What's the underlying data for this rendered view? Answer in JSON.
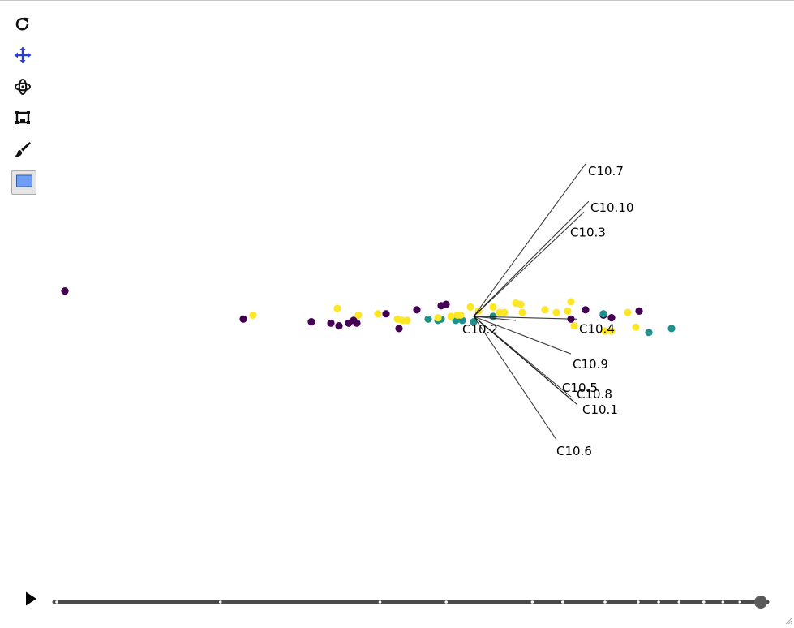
{
  "toolbar": {
    "tools": [
      {
        "name": "reset",
        "icon": "refresh-icon"
      },
      {
        "name": "pan",
        "icon": "move-arrows-icon",
        "color": "#2a3bd6"
      },
      {
        "name": "rotate",
        "icon": "orbit-icon"
      },
      {
        "name": "zoom-box",
        "icon": "zoom-box-icon"
      },
      {
        "name": "brush",
        "icon": "brush-icon"
      },
      {
        "name": "select",
        "icon": "selection-rectangle-icon",
        "color": "#6f9ff5"
      }
    ]
  },
  "chart_data": {
    "type": "scatter",
    "title": "",
    "xlabel": "",
    "ylabel": "",
    "grid": false,
    "legend": "none",
    "colors": {
      "class_a": "#440154",
      "class_b": "#21908d",
      "class_c": "#fde725",
      "loading": "#1a1a1a"
    },
    "origin": [
      0.0,
      0.0
    ],
    "loadings": [
      {
        "name": "C10.7",
        "x": 3.45,
        "y": 5.7
      },
      {
        "name": "C10.10",
        "x": 3.55,
        "y": 4.3
      },
      {
        "name": "C10.3",
        "x": 3.4,
        "y": 3.9
      },
      {
        "name": "C10.2",
        "x": 1.3,
        "y": -0.15
      },
      {
        "name": "C10.4",
        "x": 3.2,
        "y": -0.1
      },
      {
        "name": "C10.9",
        "x": 3.0,
        "y": -1.4
      },
      {
        "name": "C10.5",
        "x": 3.0,
        "y": -3.0
      },
      {
        "name": "C10.8",
        "x": 3.05,
        "y": -3.15
      },
      {
        "name": "C10.1",
        "x": 3.2,
        "y": -3.3
      },
      {
        "name": "C10.6",
        "x": 2.55,
        "y": -4.6
      }
    ],
    "series": [
      {
        "class": "class_a",
        "color": "#440154",
        "points": [
          [
            -12.6,
            0.95
          ],
          [
            -7.1,
            -0.1
          ],
          [
            -5.0,
            -0.2
          ],
          [
            -4.4,
            -0.25
          ],
          [
            -4.15,
            -0.35
          ],
          [
            -3.85,
            -0.25
          ],
          [
            -3.7,
            -0.15
          ],
          [
            -3.6,
            -0.25
          ],
          [
            -2.7,
            0.1
          ],
          [
            -2.3,
            -0.45
          ],
          [
            -1.75,
            0.25
          ],
          [
            -1.0,
            0.4
          ],
          [
            -0.85,
            0.45
          ],
          [
            3.0,
            -0.1
          ],
          [
            3.45,
            0.25
          ],
          [
            4.0,
            0.05
          ],
          [
            4.25,
            -0.05
          ],
          [
            5.1,
            0.2
          ]
        ]
      },
      {
        "class": "class_b",
        "color": "#21908d",
        "points": [
          [
            -1.4,
            -0.1
          ],
          [
            -1.1,
            -0.15
          ],
          [
            -1.0,
            -0.1
          ],
          [
            -0.55,
            -0.15
          ],
          [
            -0.35,
            -0.15
          ],
          [
            0.0,
            -0.2
          ],
          [
            0.6,
            0.0
          ],
          [
            4.0,
            0.1
          ],
          [
            5.4,
            -0.6
          ],
          [
            6.1,
            -0.45
          ]
        ]
      },
      {
        "class": "class_c",
        "color": "#fde725",
        "points": [
          [
            -6.8,
            0.05
          ],
          [
            -4.2,
            0.3
          ],
          [
            -3.55,
            0.05
          ],
          [
            -2.95,
            0.1
          ],
          [
            -2.35,
            -0.1
          ],
          [
            -2.2,
            -0.15
          ],
          [
            -2.05,
            -0.15
          ],
          [
            -1.1,
            -0.05
          ],
          [
            -0.7,
            0.0
          ],
          [
            -0.5,
            0.05
          ],
          [
            -0.4,
            0.05
          ],
          [
            -0.1,
            0.35
          ],
          [
            0.15,
            0.2
          ],
          [
            0.6,
            0.35
          ],
          [
            0.8,
            0.15
          ],
          [
            0.95,
            0.15
          ],
          [
            1.3,
            0.5
          ],
          [
            1.45,
            0.45
          ],
          [
            1.5,
            0.15
          ],
          [
            2.2,
            0.25
          ],
          [
            2.55,
            0.15
          ],
          [
            2.9,
            0.2
          ],
          [
            3.0,
            0.55
          ],
          [
            3.1,
            -0.35
          ],
          [
            4.05,
            -0.55
          ],
          [
            4.25,
            -0.55
          ],
          [
            4.75,
            0.15
          ],
          [
            5.0,
            -0.4
          ]
        ]
      }
    ]
  },
  "timeline": {
    "ticks": [
      0.0,
      0.232,
      0.458,
      0.552,
      0.674,
      0.717,
      0.777,
      0.824,
      0.853,
      0.882,
      0.917,
      0.944,
      0.968,
      0.993
    ],
    "position": 1.0
  }
}
